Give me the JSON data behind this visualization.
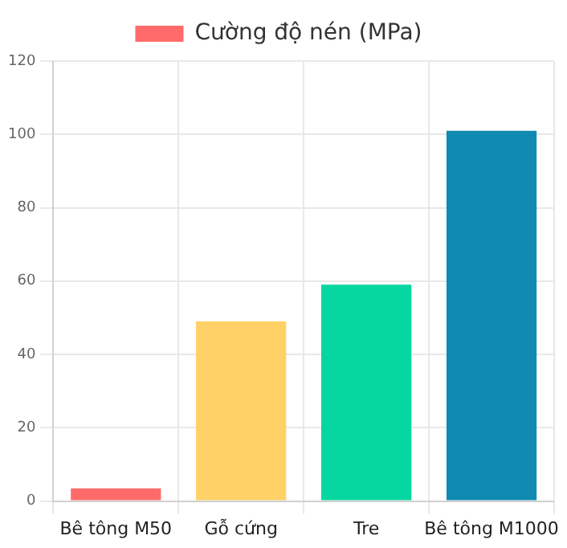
{
  "chart_data": {
    "type": "bar",
    "categories": [
      "Bê tông M50",
      "Gỗ cứng",
      "Tre",
      "Bê tông M1000"
    ],
    "series": [
      {
        "name": "Cường độ nén (MPa)",
        "colors": [
          "#ff6b6b",
          "#ffd166",
          "#06d6a0",
          "#118ab2"
        ],
        "values": [
          3.5,
          49,
          59,
          101
        ]
      }
    ],
    "ylim": [
      0,
      120
    ],
    "yticks": [
      0,
      20,
      40,
      60,
      80,
      100,
      120
    ],
    "grid": true,
    "legend": "top"
  }
}
